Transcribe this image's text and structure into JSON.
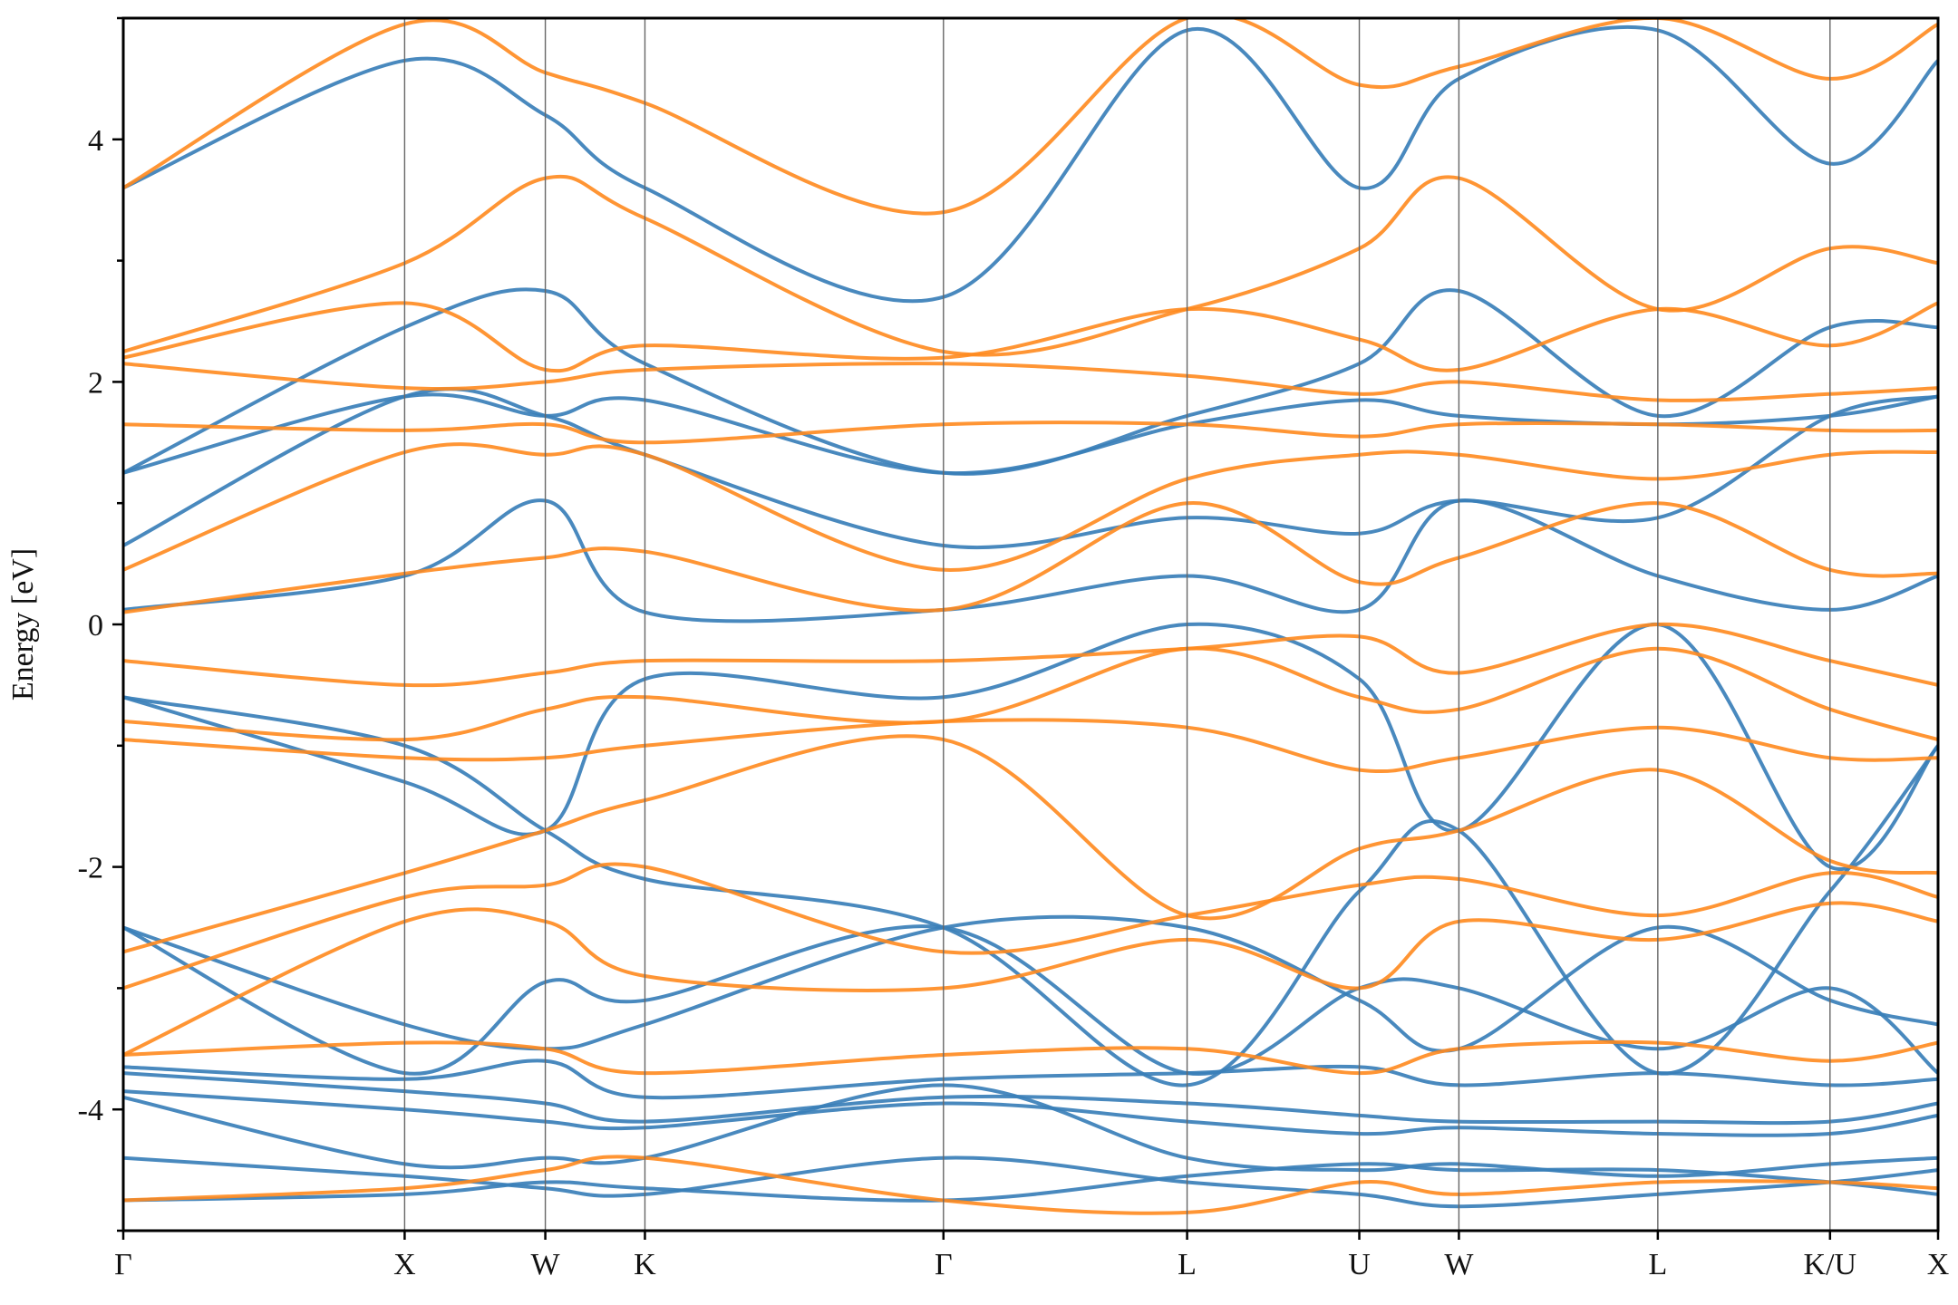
{
  "chart_data": {
    "type": "line",
    "title": "",
    "xlabel": "",
    "ylabel": "Energy [eV]",
    "ylim": [
      -5,
      5
    ],
    "yticks": [
      -4,
      -2,
      0,
      2,
      4
    ],
    "ytick_labels": [
      "-4",
      "-2",
      "0",
      "2",
      "4"
    ],
    "grid": false,
    "legend": "none",
    "kpath_distance_range": [
      0,
      6.45
    ],
    "kpoints": [
      {
        "label": "Γ",
        "x": 0.0
      },
      {
        "label": "X",
        "x": 1.0
      },
      {
        "label": "W",
        "x": 1.5
      },
      {
        "label": "K",
        "x": 1.854
      },
      {
        "label": "Γ",
        "x": 2.915
      },
      {
        "label": "L",
        "x": 3.781
      },
      {
        "label": "U",
        "x": 4.393
      },
      {
        "label": "W",
        "x": 4.747
      },
      {
        "label": "L",
        "x": 5.454
      },
      {
        "label": "K/U",
        "x": 6.066
      },
      {
        "label": "X",
        "x": 6.45
      }
    ],
    "series": [
      {
        "color": "#3a7fb8",
        "bands": [
          [
            -4.75,
            -4.7,
            -4.6,
            -4.65,
            -4.75,
            -4.55,
            -4.45,
            -4.5,
            -4.5,
            -4.6,
            -4.7
          ],
          [
            -4.4,
            -4.55,
            -4.65,
            -4.7,
            -4.4,
            -4.6,
            -4.7,
            -4.8,
            -4.7,
            -4.6,
            -4.5
          ],
          [
            -3.9,
            -4.45,
            -4.4,
            -4.4,
            -3.8,
            -4.4,
            -4.5,
            -4.45,
            -4.55,
            -4.45,
            -4.4
          ],
          [
            -3.85,
            -4.0,
            -4.1,
            -4.15,
            -3.95,
            -4.1,
            -4.2,
            -4.15,
            -4.2,
            -4.2,
            -4.05
          ],
          [
            -3.7,
            -3.85,
            -3.95,
            -4.1,
            -3.9,
            -3.95,
            -4.05,
            -4.1,
            -4.1,
            -4.1,
            -3.95
          ],
          [
            -3.65,
            -3.75,
            -3.6,
            -3.9,
            -3.75,
            -3.7,
            -3.65,
            -3.8,
            -3.7,
            -3.8,
            -3.75
          ],
          [
            -2.5,
            -3.3,
            -3.5,
            -3.3,
            -2.5,
            -2.5,
            -3.1,
            -3.5,
            -2.5,
            -3.1,
            -3.3
          ],
          [
            -2.5,
            -3.7,
            -2.95,
            -3.1,
            -2.5,
            -3.7,
            -3.0,
            -3.0,
            -3.5,
            -3.0,
            -3.7
          ],
          [
            -0.6,
            -1.0,
            -1.7,
            -2.1,
            -2.5,
            -3.8,
            -2.2,
            -1.7,
            -3.7,
            -2.2,
            -1.0
          ],
          [
            -0.6,
            -1.3,
            -1.7,
            -0.45,
            -0.6,
            0.0,
            -0.45,
            -1.7,
            0.0,
            -2.0,
            -1.0
          ],
          [
            0.12,
            0.4,
            1.02,
            0.1,
            0.12,
            0.4,
            0.12,
            1.02,
            0.4,
            0.12,
            0.4
          ],
          [
            0.65,
            1.88,
            1.72,
            1.4,
            0.65,
            0.88,
            0.75,
            1.02,
            0.88,
            1.72,
            1.88
          ],
          [
            1.25,
            1.88,
            1.72,
            1.85,
            1.25,
            1.65,
            1.85,
            1.72,
            1.65,
            1.72,
            1.88
          ],
          [
            1.25,
            2.45,
            2.75,
            2.15,
            1.25,
            1.72,
            2.15,
            2.75,
            1.72,
            2.45,
            2.45
          ],
          [
            3.6,
            4.65,
            4.2,
            3.6,
            2.7,
            4.9,
            3.6,
            4.5,
            4.9,
            3.8,
            4.65
          ]
        ]
      },
      {
        "color": "#ff8a1e",
        "bands": [
          [
            -4.75,
            -4.65,
            -4.5,
            -4.4,
            -4.75,
            -4.85,
            -4.6,
            -4.7,
            -4.6,
            -4.6,
            -4.65
          ],
          [
            -3.55,
            -3.45,
            -3.5,
            -3.7,
            -3.55,
            -3.5,
            -3.7,
            -3.5,
            -3.45,
            -3.6,
            -3.45
          ],
          [
            -3.55,
            -2.45,
            -2.45,
            -2.9,
            -3.0,
            -2.6,
            -3.0,
            -2.45,
            -2.6,
            -2.3,
            -2.45
          ],
          [
            -3.0,
            -2.25,
            -2.15,
            -2.0,
            -2.7,
            -2.4,
            -2.15,
            -2.1,
            -2.4,
            -2.05,
            -2.25
          ],
          [
            -2.7,
            -2.05,
            -1.7,
            -1.45,
            -0.95,
            -2.4,
            -1.85,
            -1.7,
            -1.2,
            -1.95,
            -2.05
          ],
          [
            -0.95,
            -1.1,
            -1.1,
            -1.0,
            -0.8,
            -0.85,
            -1.2,
            -1.1,
            -0.85,
            -1.1,
            -1.1
          ],
          [
            -0.8,
            -0.95,
            -0.7,
            -0.6,
            -0.8,
            -0.2,
            -0.6,
            -0.7,
            -0.2,
            -0.7,
            -0.95
          ],
          [
            -0.3,
            -0.5,
            -0.4,
            -0.3,
            -0.3,
            -0.2,
            -0.1,
            -0.4,
            0.0,
            -0.3,
            -0.5
          ],
          [
            0.1,
            0.42,
            0.55,
            0.6,
            0.12,
            1.0,
            0.35,
            0.55,
            1.0,
            0.45,
            0.42
          ],
          [
            0.45,
            1.42,
            1.4,
            1.4,
            0.45,
            1.2,
            1.4,
            1.4,
            1.2,
            1.4,
            1.42
          ],
          [
            1.65,
            1.6,
            1.65,
            1.5,
            1.65,
            1.65,
            1.55,
            1.65,
            1.65,
            1.6,
            1.6
          ],
          [
            2.15,
            1.95,
            2.0,
            2.1,
            2.15,
            2.05,
            1.9,
            2.0,
            1.85,
            1.9,
            1.95
          ],
          [
            2.2,
            2.65,
            2.1,
            2.3,
            2.2,
            2.6,
            2.35,
            2.1,
            2.6,
            2.3,
            2.65
          ],
          [
            2.25,
            2.98,
            3.68,
            3.35,
            2.25,
            2.6,
            3.1,
            3.68,
            2.6,
            3.1,
            2.98
          ],
          [
            3.6,
            4.95,
            4.55,
            4.3,
            3.4,
            5.0,
            4.45,
            4.6,
            5.0,
            4.5,
            4.95
          ]
        ]
      }
    ]
  }
}
